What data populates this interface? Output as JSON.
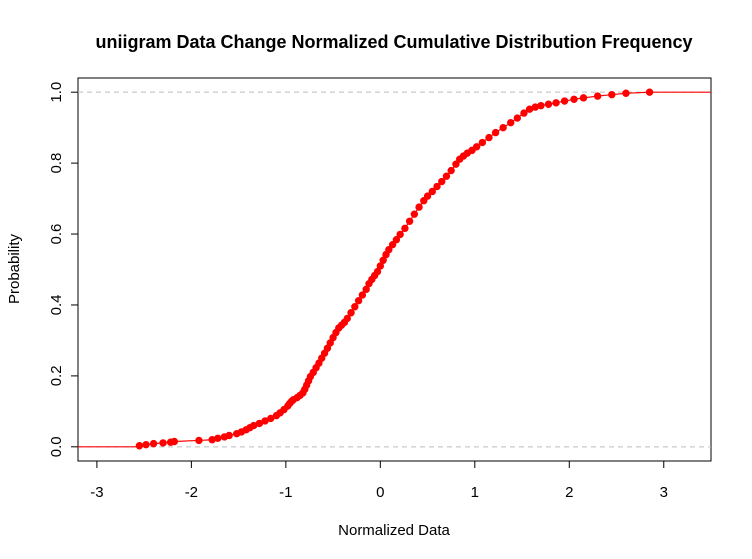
{
  "chart_data": {
    "type": "line",
    "title": "uniigram Data Change Normalized Cumulative Distribution Frequency",
    "xlabel": "Normalized Data",
    "ylabel": "Probability",
    "xlim": [
      -3.2,
      3.5
    ],
    "ylim": [
      -0.04,
      1.04
    ],
    "x_ticks": [
      "-3",
      "-2",
      "-1",
      "0",
      "1",
      "2",
      "3"
    ],
    "y_ticks": [
      "0.0",
      "0.2",
      "0.4",
      "0.6",
      "0.8",
      "1.0"
    ],
    "reference_lines": [
      0,
      1
    ],
    "series_color": "#ff0000",
    "reference_color": "#bebebe",
    "series": [
      {
        "x": [
          -2.55,
          -2.48,
          -2.4,
          -2.3,
          -2.22,
          -2.18,
          -1.92,
          -1.78,
          -1.72,
          -1.65,
          -1.6,
          -1.52,
          -1.47,
          -1.42,
          -1.38,
          -1.34,
          -1.28,
          -1.22,
          -1.16,
          -1.1,
          -1.06,
          -1.02,
          -0.98,
          -0.96,
          -0.94,
          -0.92,
          -0.88,
          -0.85,
          -0.82,
          -0.8,
          -0.78,
          -0.76,
          -0.74,
          -0.71,
          -0.68,
          -0.65,
          -0.62,
          -0.59,
          -0.56,
          -0.53,
          -0.5,
          -0.47,
          -0.44,
          -0.41,
          -0.38,
          -0.35,
          -0.31,
          -0.27,
          -0.23,
          -0.19,
          -0.15,
          -0.12,
          -0.09,
          -0.06,
          -0.03,
          0.0,
          0.03,
          0.06,
          0.09,
          0.13,
          0.17,
          0.21,
          0.26,
          0.31,
          0.36,
          0.41,
          0.46,
          0.5,
          0.55,
          0.6,
          0.65,
          0.7,
          0.75,
          0.8,
          0.84,
          0.88,
          0.92,
          0.97,
          1.02,
          1.08,
          1.15,
          1.22,
          1.3,
          1.38,
          1.45,
          1.52,
          1.58,
          1.64,
          1.7,
          1.78,
          1.86,
          1.95,
          2.05,
          2.15,
          2.3,
          2.45,
          2.6,
          2.85
        ],
        "y": [
          0.003,
          0.006,
          0.009,
          0.011,
          0.013,
          0.015,
          0.018,
          0.02,
          0.024,
          0.028,
          0.032,
          0.037,
          0.042,
          0.048,
          0.054,
          0.06,
          0.066,
          0.073,
          0.08,
          0.088,
          0.096,
          0.105,
          0.115,
          0.122,
          0.128,
          0.133,
          0.139,
          0.145,
          0.152,
          0.162,
          0.174,
          0.186,
          0.198,
          0.21,
          0.223,
          0.236,
          0.25,
          0.264,
          0.278,
          0.293,
          0.308,
          0.322,
          0.335,
          0.343,
          0.351,
          0.362,
          0.378,
          0.395,
          0.412,
          0.428,
          0.444,
          0.46,
          0.472,
          0.483,
          0.494,
          0.51,
          0.526,
          0.542,
          0.556,
          0.57,
          0.584,
          0.599,
          0.616,
          0.636,
          0.656,
          0.676,
          0.694,
          0.707,
          0.72,
          0.734,
          0.748,
          0.763,
          0.779,
          0.797,
          0.811,
          0.82,
          0.828,
          0.836,
          0.846,
          0.858,
          0.872,
          0.886,
          0.9,
          0.914,
          0.927,
          0.941,
          0.952,
          0.958,
          0.962,
          0.966,
          0.97,
          0.975,
          0.98,
          0.984,
          0.989,
          0.993,
          0.997,
          1.0
        ]
      }
    ]
  }
}
